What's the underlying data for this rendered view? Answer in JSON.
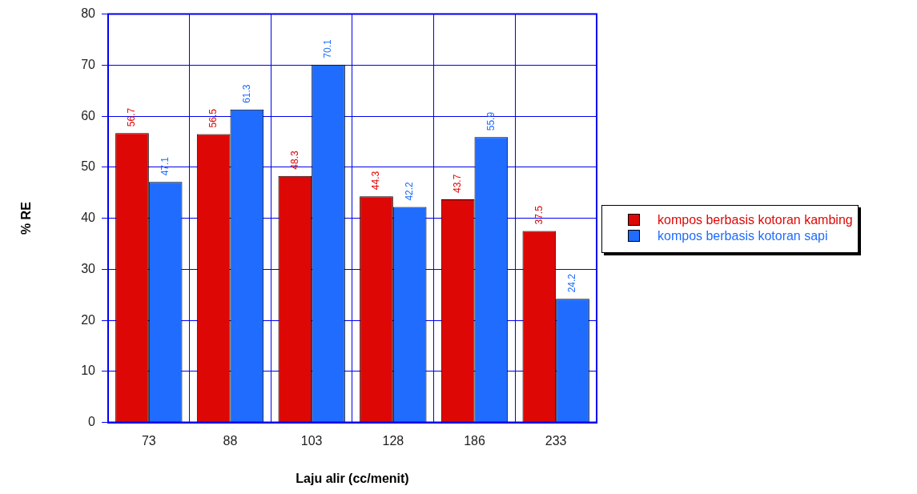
{
  "chart_data": {
    "type": "bar",
    "xlabel": "Laju alir (cc/menit)",
    "ylabel": "% RE",
    "categories": [
      "73",
      "88",
      "103",
      "128",
      "186",
      "233"
    ],
    "series": [
      {
        "name": "kompos berbasis kotoran kambing",
        "color": "#dd0806",
        "values": [
          56.7,
          56.5,
          48.3,
          44.3,
          43.7,
          37.5
        ]
      },
      {
        "name": "kompos berbasis kotoran sapi",
        "color": "#1f6cff",
        "values": [
          47.1,
          61.3,
          70.1,
          42.2,
          55.9,
          24.2
        ]
      }
    ],
    "ylim": [
      0,
      80
    ],
    "yticks": [
      0,
      10,
      20,
      30,
      40,
      50,
      60,
      70,
      80
    ],
    "grid": true,
    "legend": "right",
    "data_labels": true
  }
}
